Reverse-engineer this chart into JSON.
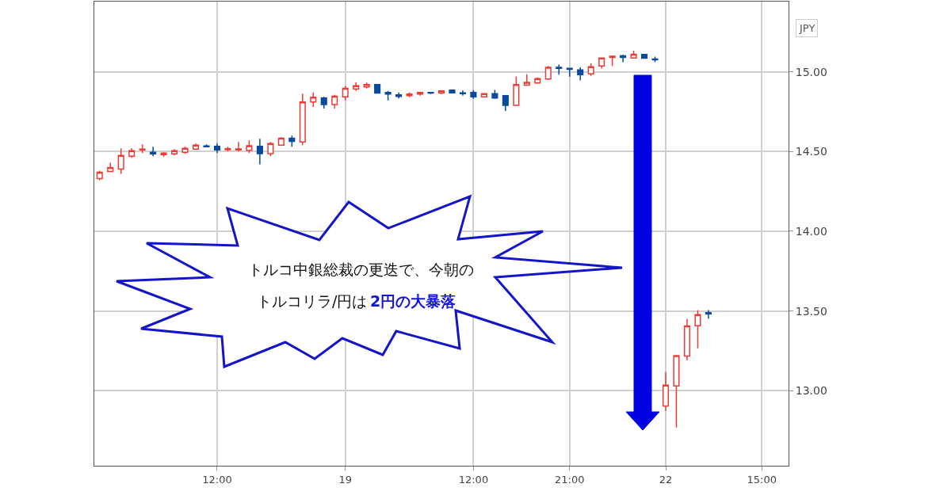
{
  "chart_data": {
    "type": "candlestick",
    "ylabel": "JPY",
    "categories": [
      null,
      null,
      null,
      null,
      null,
      null,
      null,
      null,
      null,
      null,
      null,
      "12:00",
      null,
      null,
      null,
      null,
      null,
      null,
      null,
      null,
      null,
      null,
      null,
      "19",
      null,
      null,
      null,
      null,
      null,
      null,
      null,
      null,
      null,
      null,
      null,
      "12:00",
      null,
      null,
      null,
      null,
      null,
      null,
      null,
      null,
      "21:00",
      null,
      null,
      null,
      null,
      null,
      null,
      null,
      null,
      "22",
      null,
      null,
      null,
      null,
      null,
      null,
      null,
      null,
      "15:00",
      null,
      null
    ],
    "ohlc": [
      [
        14.33,
        14.38,
        14.32,
        14.37
      ],
      [
        14.375,
        14.43,
        14.37,
        14.4
      ],
      [
        14.39,
        14.52,
        14.36,
        14.475
      ],
      [
        14.47,
        14.52,
        14.46,
        14.505
      ],
      [
        14.51,
        14.545,
        14.49,
        14.515
      ],
      [
        14.495,
        14.53,
        14.47,
        14.485
      ],
      [
        14.48,
        14.495,
        14.467,
        14.49
      ],
      [
        14.485,
        14.515,
        14.475,
        14.505
      ],
      [
        14.495,
        14.53,
        14.485,
        14.52
      ],
      [
        14.515,
        14.55,
        14.513,
        14.54
      ],
      [
        14.535,
        14.545,
        14.53,
        14.53
      ],
      [
        14.533,
        14.55,
        14.49,
        14.51
      ],
      [
        14.512,
        14.53,
        14.5,
        14.517
      ],
      [
        14.51,
        14.56,
        14.5,
        14.516
      ],
      [
        14.507,
        14.57,
        14.49,
        14.536
      ],
      [
        14.533,
        14.58,
        14.42,
        14.487
      ],
      [
        14.487,
        14.56,
        14.47,
        14.55
      ],
      [
        14.54,
        14.59,
        14.535,
        14.583
      ],
      [
        14.583,
        14.6,
        14.53,
        14.563
      ],
      [
        14.56,
        14.863,
        14.54,
        14.81
      ],
      [
        14.81,
        14.87,
        14.78,
        14.84
      ],
      [
        14.835,
        14.843,
        14.77,
        14.795
      ],
      [
        14.795,
        14.855,
        14.77,
        14.847
      ],
      [
        14.843,
        14.91,
        14.82,
        14.896
      ],
      [
        14.893,
        14.934,
        14.88,
        14.912
      ],
      [
        14.905,
        14.932,
        14.896,
        14.92
      ],
      [
        14.92,
        14.922,
        14.865,
        14.867
      ],
      [
        14.87,
        14.88,
        14.82,
        14.86
      ],
      [
        14.855,
        14.87,
        14.833,
        14.845
      ],
      [
        14.85,
        14.87,
        14.84,
        14.86
      ],
      [
        14.86,
        14.87,
        14.85,
        14.87
      ],
      [
        14.87,
        14.872,
        14.86,
        14.867
      ],
      [
        14.867,
        14.885,
        14.86,
        14.88
      ],
      [
        14.885,
        14.885,
        14.865,
        14.868
      ],
      [
        14.868,
        14.883,
        14.85,
        14.863
      ],
      [
        14.87,
        14.885,
        14.83,
        14.843
      ],
      [
        14.843,
        14.865,
        14.84,
        14.863
      ],
      [
        14.863,
        14.886,
        14.83,
        14.835
      ],
      [
        14.85,
        14.85,
        14.755,
        14.79
      ],
      [
        14.79,
        14.97,
        14.79,
        14.92
      ],
      [
        14.916,
        14.984,
        14.914,
        14.934
      ],
      [
        14.93,
        14.965,
        14.925,
        14.957
      ],
      [
        14.954,
        15.036,
        14.95,
        15.028
      ],
      [
        15.028,
        15.045,
        14.982,
        15.022
      ],
      [
        15.022,
        15.022,
        14.97,
        15.015
      ],
      [
        15.012,
        15.028,
        14.946,
        14.982
      ],
      [
        14.987,
        15.053,
        14.974,
        15.031
      ],
      [
        15.036,
        15.09,
        15.02,
        15.086
      ],
      [
        15.09,
        15.102,
        15.036,
        15.097
      ],
      [
        15.1,
        15.107,
        15.06,
        15.09
      ],
      [
        15.086,
        15.132,
        15.086,
        15.11
      ],
      [
        15.108,
        15.11,
        15.083,
        15.085
      ],
      [
        15.08,
        15.095,
        15.06,
        15.075
      ],
      [
        12.905,
        13.117,
        12.875,
        13.035
      ],
      [
        13.03,
        13.22,
        12.77,
        13.22
      ],
      [
        13.218,
        13.45,
        13.19,
        13.407
      ],
      [
        13.408,
        13.506,
        13.266,
        13.477
      ],
      [
        13.49,
        13.506,
        13.452,
        13.482
      ],
      null,
      null,
      null,
      null,
      null,
      null,
      null
    ],
    "colors": [
      "#ef3b36",
      "#ef3b36",
      "#ef3b36",
      "#ef3b36",
      "#ef3b36",
      "#0b4a9c",
      "#ef3b36",
      "#ef3b36",
      "#ef3b36",
      "#ef3b36",
      "#0b4a9c",
      "#0b4a9c",
      "#ef3b36",
      "#ef3b36",
      "#ef3b36",
      "#0b4a9c",
      "#ef3b36",
      "#ef3b36",
      "#0b4a9c",
      "#ef3b36",
      "#ef3b36",
      "#0b4a9c",
      "#ef3b36",
      "#ef3b36",
      "#ef3b36",
      "#ef3b36",
      "#0b4a9c",
      "#0b4a9c",
      "#0b4a9c",
      "#ef3b36",
      "#ef3b36",
      "#0b4a9c",
      "#ef3b36",
      "#0b4a9c",
      "#0b4a9c",
      "#0b4a9c",
      "#ef3b36",
      "#0b4a9c",
      "#0b4a9c",
      "#ef3b36",
      "#ef3b36",
      "#ef3b36",
      "#ef3b36",
      "#0b4a9c",
      "#0b4a9c",
      "#0b4a9c",
      "#ef3b36",
      "#ef3b36",
      "#ef3b36",
      "#0b4a9c",
      "#ef3b36",
      "#0b4a9c",
      "#0b4a9c",
      "#ef3b36",
      "#ef3b36",
      "#ef3b36",
      "#ef3b36",
      "#0b4a9c",
      null,
      null,
      null,
      null,
      null,
      null,
      null
    ],
    "ylim": [
      12.53,
      15.44
    ],
    "yticks": [
      {
        "value": 13,
        "label": "13.00"
      },
      {
        "value": 13.5,
        "label": "13.50"
      },
      {
        "value": 14,
        "label": "14.00"
      },
      {
        "value": 14.5,
        "label": "14.50"
      },
      {
        "value": 15,
        "label": "15.00"
      }
    ],
    "grid": true,
    "annotations": [
      "トルコ中銀総裁の更迭で、今朝の",
      "トルコリラ/円は",
      "2円の大暴落"
    ]
  }
}
